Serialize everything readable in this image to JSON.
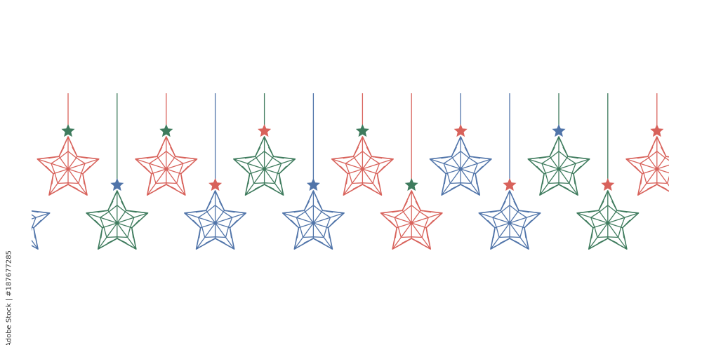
{
  "colors": {
    "red": "#d8625b",
    "green": "#3e7b5d",
    "blue": "#5074a9"
  },
  "credit": "Adobe Stock | #187677285",
  "top_row": [
    {
      "color": "red",
      "cap": "green"
    },
    {
      "color": "red",
      "cap": "green"
    },
    {
      "color": "green",
      "cap": "red"
    },
    {
      "color": "red",
      "cap": "green"
    },
    {
      "color": "blue",
      "cap": "red"
    },
    {
      "color": "green",
      "cap": "blue"
    },
    {
      "color": "red",
      "cap": "red"
    }
  ],
  "bottom_row": [
    {
      "color": "blue",
      "cap": "blue"
    },
    {
      "color": "green",
      "cap": "blue"
    },
    {
      "color": "blue",
      "cap": "red"
    },
    {
      "color": "blue",
      "cap": "blue"
    },
    {
      "color": "red",
      "cap": "green"
    },
    {
      "color": "blue",
      "cap": "red"
    },
    {
      "color": "green",
      "cap": "red"
    }
  ]
}
